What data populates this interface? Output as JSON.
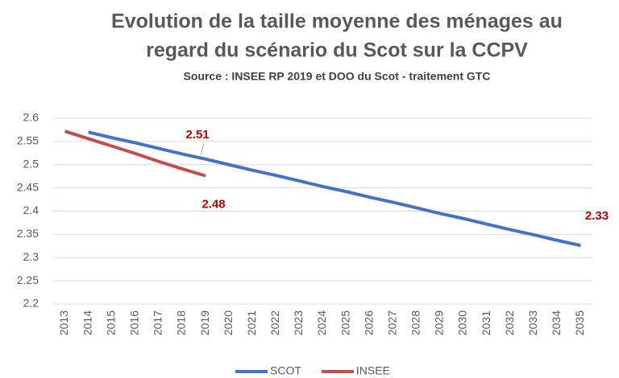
{
  "chart_data": {
    "type": "line",
    "title": [
      "Evolution de la taille moyenne des ménages au",
      "regard du scénario du Scot sur la CCPV"
    ],
    "subtitle": "Source : INSEE RP 2019 et DOO du Scot - traitement GTC",
    "categories": [
      "2013",
      "2014",
      "2015",
      "2016",
      "2017",
      "2018",
      "2019",
      "2020",
      "2021",
      "2022",
      "2023",
      "2024",
      "2025",
      "2026",
      "2027",
      "2028",
      "2029",
      "2030",
      "2031",
      "2032",
      "2033",
      "2034",
      "2035"
    ],
    "series": [
      {
        "name": "SCOT",
        "color": "#4472c4",
        "values": [
          null,
          2.57,
          2.558,
          2.547,
          2.535,
          2.523,
          2.512,
          2.5,
          2.488,
          2.477,
          2.465,
          2.453,
          2.442,
          2.43,
          2.419,
          2.407,
          2.395,
          2.384,
          2.372,
          2.36,
          2.349,
          2.337,
          2.326
        ],
        "value_labels": [
          null,
          null,
          null,
          null,
          null,
          null,
          "2.51",
          null,
          null,
          null,
          null,
          null,
          null,
          null,
          null,
          null,
          null,
          null,
          null,
          null,
          null,
          null,
          "2.33"
        ]
      },
      {
        "name": "INSEE",
        "color": "#c0504d",
        "values": [
          2.572,
          2.556,
          2.54,
          2.524,
          2.507,
          2.491,
          2.476,
          null,
          null,
          null,
          null,
          null,
          null,
          null,
          null,
          null,
          null,
          null,
          null,
          null,
          null,
          null,
          null
        ],
        "value_labels": [
          null,
          null,
          null,
          null,
          null,
          null,
          "2.48",
          null,
          null,
          null,
          null,
          null,
          null,
          null,
          null,
          null,
          null,
          null,
          null,
          null,
          null,
          null,
          null
        ]
      }
    ],
    "ylim": [
      2.2,
      2.6
    ],
    "yticks": [
      2.2,
      2.25,
      2.3,
      2.35,
      2.4,
      2.45,
      2.5,
      2.55,
      2.6
    ],
    "grid": true,
    "legend": "bottom"
  }
}
